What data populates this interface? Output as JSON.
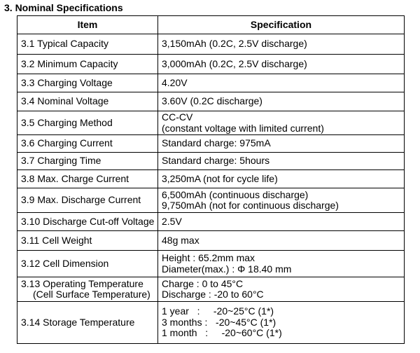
{
  "section": {
    "title": "3. Nominal Specifications"
  },
  "table": {
    "headers": {
      "item": "Item",
      "specification": "Specification"
    },
    "rows": [
      {
        "item": [
          "3.1 Typical Capacity"
        ],
        "spec": [
          "3,150mAh (0.2C, 2.5V discharge)"
        ]
      },
      {
        "item": [
          "3.2 Minimum Capacity"
        ],
        "spec": [
          "3,000mAh (0.2C, 2.5V discharge)"
        ]
      },
      {
        "item": [
          "3.3 Charging Voltage"
        ],
        "spec": [
          "4.20V"
        ]
      },
      {
        "item": [
          "3.4 Nominal Voltage"
        ],
        "spec": [
          "3.60V (0.2C discharge)"
        ]
      },
      {
        "item": [
          "3.5 Charging Method"
        ],
        "spec": [
          "CC-CV",
          "(constant voltage with limited current)"
        ]
      },
      {
        "item": [
          "3.6 Charging Current"
        ],
        "spec": [
          "Standard charge: 975mA"
        ]
      },
      {
        "item": [
          "3.7 Charging Time"
        ],
        "spec": [
          "Standard charge: 5hours"
        ]
      },
      {
        "item": [
          "3.8 Max. Charge Current"
        ],
        "spec": [
          "3,250mA (not for cycle life)"
        ]
      },
      {
        "item": [
          "3.9 Max. Discharge Current"
        ],
        "spec": [
          "6,500mAh (continuous discharge)",
          "9,750mAh (not for continuous discharge)"
        ]
      },
      {
        "item": [
          "3.10 Discharge Cut-off Voltage"
        ],
        "spec": [
          "2.5V"
        ]
      },
      {
        "item": [
          "3.11 Cell Weight"
        ],
        "spec": [
          "48g max"
        ]
      },
      {
        "item": [
          "3.12 Cell Dimension"
        ],
        "spec": [
          "Height : 65.2mm max",
          "Diameter(max.) : Φ 18.40 mm"
        ]
      },
      {
        "item": [
          "3.13 Operating Temperature",
          "(Cell Surface Temperature)"
        ],
        "spec": [
          "Charge : 0 to 45°C",
          "Discharge : -20 to 60°C"
        ]
      },
      {
        "item": [
          "3.14 Storage Temperature"
        ],
        "spec": [
          "1 year   :     -20~25°C (1*)",
          "3 months :   -20~45°C (1*)",
          "1 month   :     -20~60°C (1*)"
        ]
      }
    ]
  }
}
